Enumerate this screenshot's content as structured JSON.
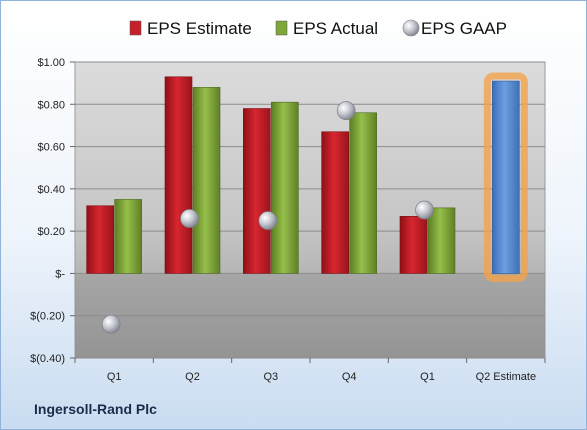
{
  "company": "Ingersoll-Rand Plc",
  "colors": {
    "estimate": "#c8202a",
    "actual": "#7fa63a",
    "gaap": "#b9bcc4",
    "q2_estimate": "#4f87d1",
    "highlight": "#f2a24a"
  },
  "chart_data": {
    "type": "bar",
    "categories": [
      "Q1",
      "Q2",
      "Q3",
      "Q4",
      "Q1",
      "Q2 Estimate"
    ],
    "ylim": [
      -0.4,
      1.0
    ],
    "yticks": [
      {
        "value": 1.0,
        "label": "$1.00"
      },
      {
        "value": 0.8,
        "label": "$0.80"
      },
      {
        "value": 0.6,
        "label": "$0.60"
      },
      {
        "value": 0.4,
        "label": "$0.40"
      },
      {
        "value": 0.2,
        "label": "$0.20"
      },
      {
        "value": 0.0,
        "label": "$-"
      },
      {
        "value": -0.2,
        "label": "$(0.20)"
      },
      {
        "value": -0.4,
        "label": "$(0.40)"
      }
    ],
    "grid": true,
    "legend_position": "top",
    "series": [
      {
        "name": "EPS Estimate",
        "kind": "bar",
        "values": [
          0.32,
          0.93,
          0.78,
          0.67,
          0.27,
          0.91
        ]
      },
      {
        "name": "EPS Actual",
        "kind": "bar",
        "values": [
          0.35,
          0.88,
          0.81,
          0.76,
          0.31,
          null
        ]
      },
      {
        "name": "EPS GAAP",
        "kind": "marker",
        "values": [
          -0.24,
          0.26,
          0.25,
          0.77,
          0.3,
          null
        ]
      }
    ]
  }
}
